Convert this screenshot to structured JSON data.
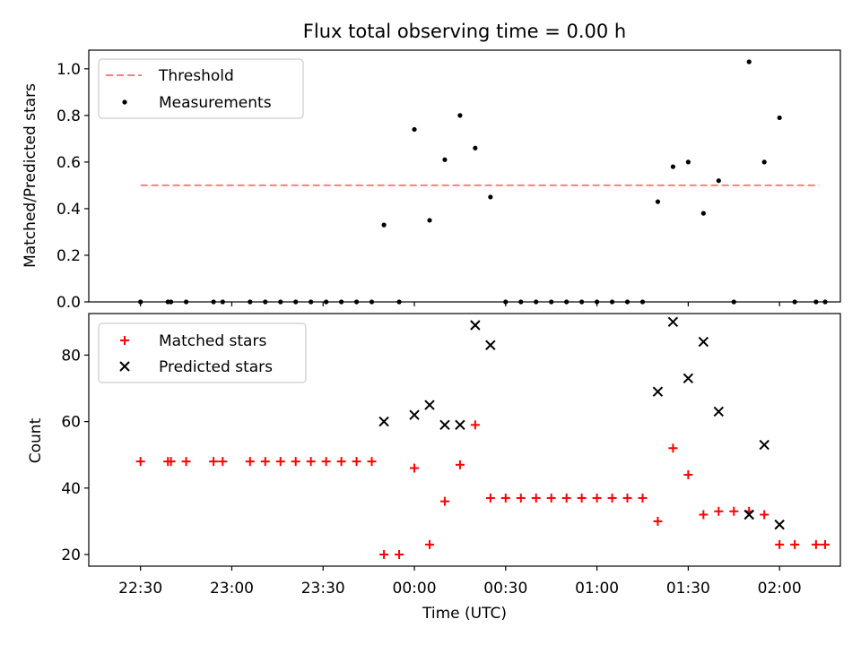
{
  "chart_data": [
    {
      "type": "scatter",
      "title": "Flux total observing time = 0.00 h",
      "xlabel": "",
      "ylabel": "Matched/Predicted stars",
      "ylim": [
        0,
        1.08
      ],
      "xlim_minutes_from_2230": [
        -17,
        230
      ],
      "yticks": [
        {
          "value": 0.0,
          "label": "0.0"
        },
        {
          "value": 0.2,
          "label": "0.2"
        },
        {
          "value": 0.4,
          "label": "0.4"
        },
        {
          "value": 0.6,
          "label": "0.6"
        },
        {
          "value": 0.8,
          "label": "0.8"
        },
        {
          "value": 1.0,
          "label": "1.0"
        }
      ],
      "legend": {
        "placement": "upper-left",
        "entries": [
          "Threshold",
          "Measurements"
        ]
      },
      "series": [
        {
          "name": "Threshold",
          "kind": "dashed-line",
          "color": "#ff7f7f",
          "points": [
            [
              0,
              0.5
            ],
            [
              223,
              0.5
            ]
          ]
        },
        {
          "name": "Measurements",
          "kind": "dot",
          "color": "#000000",
          "points": [
            [
              0,
              0.0
            ],
            [
              9,
              0.0
            ],
            [
              10,
              0.0
            ],
            [
              15,
              0.0
            ],
            [
              24,
              0.0
            ],
            [
              27,
              0.0
            ],
            [
              36,
              0.0
            ],
            [
              41,
              0.0
            ],
            [
              46,
              0.0
            ],
            [
              51,
              0.0
            ],
            [
              56,
              0.0
            ],
            [
              61,
              0.0
            ],
            [
              66,
              0.0
            ],
            [
              71,
              0.0
            ],
            [
              76,
              0.0
            ],
            [
              80,
              0.33
            ],
            [
              85,
              0.0
            ],
            [
              90,
              0.74
            ],
            [
              95,
              0.35
            ],
            [
              100,
              0.61
            ],
            [
              105,
              0.8
            ],
            [
              110,
              0.66
            ],
            [
              115,
              0.45
            ],
            [
              120,
              0.0
            ],
            [
              125,
              0.0
            ],
            [
              130,
              0.0
            ],
            [
              135,
              0.0
            ],
            [
              140,
              0.0
            ],
            [
              145,
              0.0
            ],
            [
              150,
              0.0
            ],
            [
              155,
              0.0
            ],
            [
              160,
              0.0
            ],
            [
              165,
              0.0
            ],
            [
              170,
              0.43
            ],
            [
              175,
              0.58
            ],
            [
              180,
              0.6
            ],
            [
              185,
              0.38
            ],
            [
              190,
              0.52
            ],
            [
              195,
              0.0
            ],
            [
              200,
              1.03
            ],
            [
              205,
              0.6
            ],
            [
              210,
              0.79
            ],
            [
              215,
              0.0
            ],
            [
              222,
              0.0
            ],
            [
              225,
              0.0
            ]
          ]
        }
      ]
    },
    {
      "type": "scatter",
      "title": "",
      "xlabel": "Time (UTC)",
      "ylabel": "Count",
      "ylim": [
        16.5,
        92.5
      ],
      "xlim_minutes_from_2230": [
        -17,
        230
      ],
      "yticks": [
        {
          "value": 20,
          "label": "20"
        },
        {
          "value": 40,
          "label": "40"
        },
        {
          "value": 60,
          "label": "60"
        },
        {
          "value": 80,
          "label": "80"
        }
      ],
      "xticks": [
        {
          "value": 0,
          "label": "22:30"
        },
        {
          "value": 30,
          "label": "23:00"
        },
        {
          "value": 60,
          "label": "23:30"
        },
        {
          "value": 90,
          "label": "00:00"
        },
        {
          "value": 120,
          "label": "00:30"
        },
        {
          "value": 150,
          "label": "01:00"
        },
        {
          "value": 180,
          "label": "01:30"
        },
        {
          "value": 210,
          "label": "02:00"
        }
      ],
      "legend": {
        "placement": "upper-left",
        "entries": [
          "Matched stars",
          "Predicted stars"
        ]
      },
      "series": [
        {
          "name": "Matched stars",
          "kind": "plus",
          "color": "#ff0000",
          "points": [
            [
              0,
              48
            ],
            [
              9,
              48
            ],
            [
              10,
              48
            ],
            [
              15,
              48
            ],
            [
              24,
              48
            ],
            [
              27,
              48
            ],
            [
              36,
              48
            ],
            [
              41,
              48
            ],
            [
              46,
              48
            ],
            [
              51,
              48
            ],
            [
              56,
              48
            ],
            [
              61,
              48
            ],
            [
              66,
              48
            ],
            [
              71,
              48
            ],
            [
              76,
              48
            ],
            [
              80,
              20
            ],
            [
              85,
              20
            ],
            [
              90,
              46
            ],
            [
              95,
              23
            ],
            [
              100,
              36
            ],
            [
              105,
              47
            ],
            [
              110,
              59
            ],
            [
              115,
              37
            ],
            [
              120,
              37
            ],
            [
              125,
              37
            ],
            [
              130,
              37
            ],
            [
              135,
              37
            ],
            [
              140,
              37
            ],
            [
              145,
              37
            ],
            [
              150,
              37
            ],
            [
              155,
              37
            ],
            [
              160,
              37
            ],
            [
              165,
              37
            ],
            [
              170,
              30
            ],
            [
              175,
              52
            ],
            [
              180,
              44
            ],
            [
              185,
              32
            ],
            [
              190,
              33
            ],
            [
              195,
              33
            ],
            [
              200,
              33
            ],
            [
              205,
              32
            ],
            [
              210,
              23
            ],
            [
              215,
              23
            ],
            [
              222,
              23
            ],
            [
              225,
              23
            ]
          ]
        },
        {
          "name": "Predicted stars",
          "kind": "x",
          "color": "#000000",
          "points": [
            [
              80,
              60
            ],
            [
              90,
              62
            ],
            [
              95,
              65
            ],
            [
              100,
              59
            ],
            [
              105,
              59
            ],
            [
              110,
              89
            ],
            [
              115,
              83
            ],
            [
              170,
              69
            ],
            [
              175,
              90
            ],
            [
              180,
              73
            ],
            [
              185,
              84
            ],
            [
              190,
              63
            ],
            [
              200,
              32
            ],
            [
              205,
              53
            ],
            [
              210,
              29
            ]
          ]
        }
      ]
    }
  ]
}
